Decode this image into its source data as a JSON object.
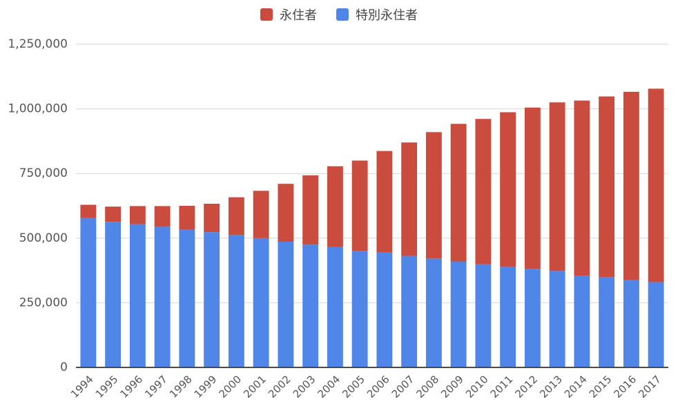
{
  "chart_data": {
    "type": "bar",
    "stacked": true,
    "categories": [
      "1994",
      "1995",
      "1996",
      "1997",
      "1998",
      "1999",
      "2000",
      "2001",
      "2002",
      "2003",
      "2004",
      "2005",
      "2006",
      "2007",
      "2008",
      "2009",
      "2010",
      "2011",
      "2012",
      "2013",
      "2014",
      "2015",
      "2016",
      "2017"
    ],
    "series": [
      {
        "name": "特別永住者",
        "color": "#4f86e8",
        "values": [
          578000,
          563000,
          554000,
          544000,
          533000,
          523000,
          512000,
          500000,
          486000,
          475000,
          466000,
          451000,
          444000,
          431000,
          421000,
          410000,
          399000,
          389000,
          381000,
          373000,
          355000,
          349000,
          339000,
          330000
        ]
      },
      {
        "name": "永住者",
        "color": "#c94c3f",
        "values": [
          51000,
          59000,
          70000,
          80000,
          92000,
          110000,
          146000,
          183000,
          224000,
          268000,
          312000,
          349000,
          393000,
          439000,
          489000,
          532000,
          562000,
          598000,
          624000,
          652000,
          677000,
          699000,
          727000,
          748000
        ]
      }
    ],
    "ylim": [
      0,
      1250000
    ],
    "yticks": [
      "0",
      "250,000",
      "500,000",
      "750,000",
      "1,000,000",
      "1,250,000"
    ],
    "ytick_values": [
      0,
      250000,
      500000,
      750000,
      1000000,
      1250000
    ],
    "grid": true,
    "legend_position": "top-center"
  }
}
